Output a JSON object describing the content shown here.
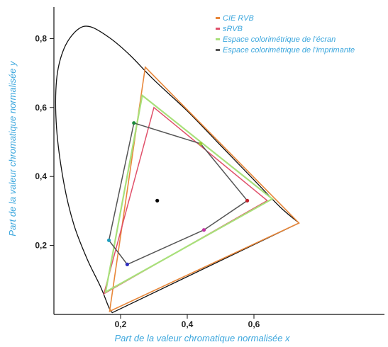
{
  "chart_data": {
    "type": "scatter",
    "title": "",
    "xlabel": "Part de la valeur chromatique normalisée x",
    "ylabel": "Part de la valeur chromatique normalisée y",
    "xlim": [
      0,
      0.8
    ],
    "ylim": [
      0,
      0.9
    ],
    "x_ticks": [
      0.2,
      0.4,
      0.6
    ],
    "x_tick_labels": [
      "0,2",
      "0,4",
      "0,6"
    ],
    "y_ticks": [
      0.2,
      0.4,
      0.6,
      0.8
    ],
    "y_tick_labels": [
      "0,2",
      "0,4",
      "0,6",
      "0,8"
    ],
    "grid": false,
    "legend_position": "top-right",
    "spectral_locus": [
      [
        0.175,
        0.005
      ],
      [
        0.165,
        0.02
      ],
      [
        0.14,
        0.08
      ],
      [
        0.1,
        0.16
      ],
      [
        0.06,
        0.26
      ],
      [
        0.03,
        0.38
      ],
      [
        0.008,
        0.54
      ],
      [
        0.008,
        0.68
      ],
      [
        0.03,
        0.77
      ],
      [
        0.07,
        0.825
      ],
      [
        0.11,
        0.834
      ],
      [
        0.17,
        0.8
      ],
      [
        0.23,
        0.75
      ],
      [
        0.3,
        0.68
      ],
      [
        0.4,
        0.59
      ],
      [
        0.5,
        0.49
      ],
      [
        0.6,
        0.39
      ],
      [
        0.68,
        0.31
      ],
      [
        0.735,
        0.265
      ]
    ],
    "white_point": [
      0.31,
      0.33
    ],
    "series": [
      {
        "name": "CIE RVB",
        "color": "#e8873a",
        "points": [
          [
            0.735,
            0.265
          ],
          [
            0.274,
            0.717
          ],
          [
            0.167,
            0.009
          ]
        ]
      },
      {
        "name": "sRVB",
        "color": "#e0506a",
        "points": [
          [
            0.64,
            0.33
          ],
          [
            0.3,
            0.6
          ],
          [
            0.15,
            0.06
          ]
        ]
      },
      {
        "name": "Espace colorimétrique de l'écran",
        "color": "#a8e07a",
        "points": [
          [
            0.655,
            0.335
          ],
          [
            0.265,
            0.635
          ],
          [
            0.155,
            0.065
          ]
        ]
      },
      {
        "name": "Espace colorimétrique de l'imprimante",
        "color": "#555555",
        "points": [
          [
            0.24,
            0.555
          ],
          [
            0.44,
            0.495
          ],
          [
            0.58,
            0.33
          ],
          [
            0.45,
            0.245
          ],
          [
            0.22,
            0.145
          ],
          [
            0.165,
            0.215
          ]
        ]
      }
    ],
    "printer_vertex_colors": [
      "#1a8a3a",
      "#9ac830",
      "#c0202a",
      "#c030a0",
      "#3030c0",
      "#20a0c0"
    ]
  }
}
